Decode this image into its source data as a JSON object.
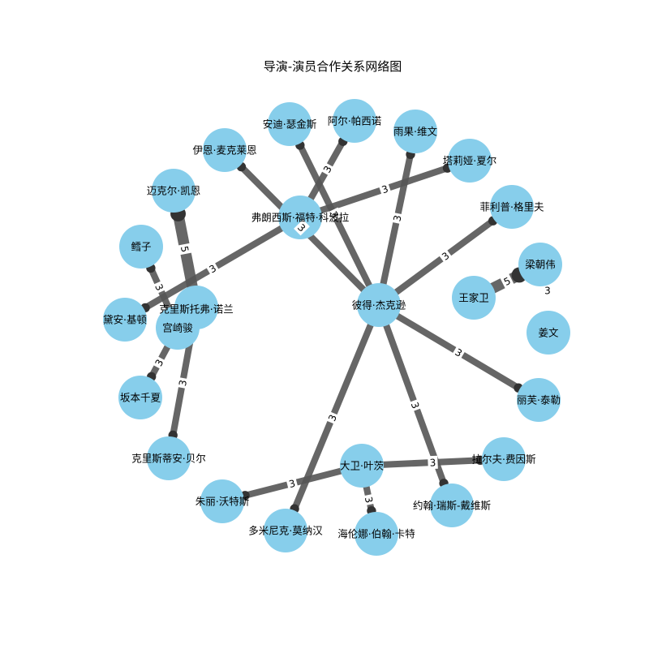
{
  "title": "导演-演员合作关系网络图",
  "colors": {
    "node": "#87ceeb",
    "edge": "#555555",
    "background": "#ffffff"
  },
  "nodes": [
    {
      "id": "peter_jackson",
      "label": "彼得·杰克逊"
    },
    {
      "id": "francis_coppola",
      "label": "弗朗西斯·福特·科波拉"
    },
    {
      "id": "christopher_nolan",
      "label": "克里斯托弗·诺兰"
    },
    {
      "id": "miyazaki",
      "label": "宫崎骏"
    },
    {
      "id": "david_yates",
      "label": "大卫·叶茨"
    },
    {
      "id": "wong_kar_wai",
      "label": "王家卫"
    },
    {
      "id": "jiang_wen",
      "label": "姜文"
    },
    {
      "id": "tony_leung",
      "label": "梁朝伟"
    },
    {
      "id": "philippe_gorey",
      "label": "菲利普·格里夫"
    },
    {
      "id": "talia_shire",
      "label": "塔莉娅·夏尔"
    },
    {
      "id": "hugo_weaving",
      "label": "雨果·维文"
    },
    {
      "id": "al_pacino",
      "label": "阿尔·帕西诺"
    },
    {
      "id": "andy_serkis",
      "label": "安迪·瑟金斯"
    },
    {
      "id": "ian_mckellen",
      "label": "伊恩·麦克莱恩"
    },
    {
      "id": "michael_caine",
      "label": "迈克尔·凯恩"
    },
    {
      "id": "cod",
      "label": "鳕子"
    },
    {
      "id": "diane_keaton",
      "label": "黛安·基顿"
    },
    {
      "id": "sakamoto",
      "label": "坂本千夏"
    },
    {
      "id": "christian_bale",
      "label": "克里斯蒂安·贝尔"
    },
    {
      "id": "julie_walters",
      "label": "朱丽·沃特斯"
    },
    {
      "id": "dominic_monaghan",
      "label": "多米尼克·莫纳汉"
    },
    {
      "id": "helena_carter",
      "label": "海伦娜·伯翰·卡特"
    },
    {
      "id": "john_rhys_davies",
      "label": "约翰·瑞斯-戴维斯"
    },
    {
      "id": "ralph_fiennes",
      "label": "拉尔夫·费因斯"
    },
    {
      "id": "liv_tyler",
      "label": "丽芙·泰勒"
    }
  ],
  "edges": [
    {
      "source": "peter_jackson",
      "target": "andy_serkis",
      "weight": 3
    },
    {
      "source": "peter_jackson",
      "target": "hugo_weaving",
      "weight": 3
    },
    {
      "source": "peter_jackson",
      "target": "ian_mckellen",
      "weight": 3
    },
    {
      "source": "peter_jackson",
      "target": "philippe_gorey",
      "weight": 3
    },
    {
      "source": "peter_jackson",
      "target": "liv_tyler",
      "weight": 3
    },
    {
      "source": "peter_jackson",
      "target": "john_rhys_davies",
      "weight": 3
    },
    {
      "source": "peter_jackson",
      "target": "dominic_monaghan",
      "weight": 3
    },
    {
      "source": "francis_coppola",
      "target": "al_pacino",
      "weight": 3
    },
    {
      "source": "francis_coppola",
      "target": "talia_shire",
      "weight": 3
    },
    {
      "source": "francis_coppola",
      "target": "diane_keaton",
      "weight": 3
    },
    {
      "source": "christopher_nolan",
      "target": "michael_caine",
      "weight": 5
    },
    {
      "source": "christopher_nolan",
      "target": "christian_bale",
      "weight": 3
    },
    {
      "source": "miyazaki",
      "target": "cod",
      "weight": 3
    },
    {
      "source": "miyazaki",
      "target": "sakamoto",
      "weight": 3
    },
    {
      "source": "david_yates",
      "target": "ralph_fiennes",
      "weight": 3
    },
    {
      "source": "david_yates",
      "target": "julie_walters",
      "weight": 3
    },
    {
      "source": "david_yates",
      "target": "helena_carter",
      "weight": 3
    },
    {
      "source": "wong_kar_wai",
      "target": "tony_leung",
      "weight": 5
    }
  ],
  "standalone_labels": [
    {
      "text": "3"
    }
  ]
}
